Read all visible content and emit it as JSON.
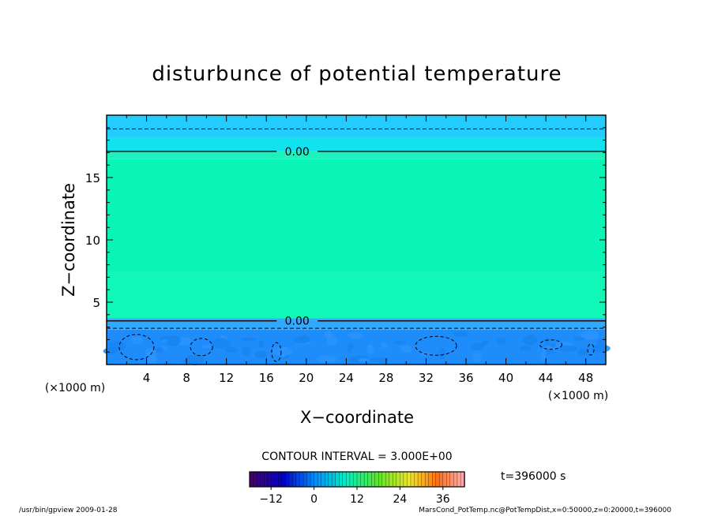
{
  "chart_data": {
    "type": "heatmap",
    "title": "disturbunce of potential temperature",
    "xlabel": "X−coordinate",
    "ylabel": "Z−coordinate",
    "x_unit": "(×1000 m)",
    "z_unit": "(×1000 m)",
    "xlim": [
      0,
      50
    ],
    "ylim": [
      0,
      20
    ],
    "x_ticks": [
      "4",
      "8",
      "12",
      "16",
      "20",
      "24",
      "28",
      "32",
      "36",
      "40",
      "44",
      "48"
    ],
    "y_ticks": [
      "5",
      "10",
      "15"
    ],
    "bands": [
      {
        "z_from": 0.0,
        "z_to": 2.8,
        "value": -4.5,
        "color": "#1f8cfc"
      },
      {
        "z_from": 2.8,
        "z_to": 3.7,
        "value": -1.5,
        "color": "#33a8ff"
      },
      {
        "z_from": 3.7,
        "z_to": 7.5,
        "value": 1.5,
        "color": "#10f7b8"
      },
      {
        "z_from": 7.5,
        "z_to": 16.5,
        "value": 1.5,
        "color": "#08f5b5"
      },
      {
        "z_from": 16.5,
        "z_to": 17.1,
        "value": 1.5,
        "color": "#1ef0c0"
      },
      {
        "z_from": 17.1,
        "z_to": 18.2,
        "value": -1.5,
        "color": "#12e2ee"
      },
      {
        "z_from": 18.2,
        "z_to": 20.0,
        "value": -1.5,
        "color": "#22ccff"
      }
    ],
    "contours": [
      {
        "level": "0.00",
        "z": 17.1,
        "style": "solid",
        "label_x": 17.5
      },
      {
        "level": "0.00",
        "z": 3.5,
        "style": "solid",
        "label_x": 17.5
      },
      {
        "level": "-3",
        "z": 18.9,
        "style": "dashed"
      },
      {
        "level": "-3",
        "z": 2.9,
        "style": "dashed"
      }
    ],
    "contour_interval_label": "CONTOUR INTERVAL = 3.000E+00",
    "colorbar": {
      "min": -18,
      "max": 42,
      "tick_labels": [
        "−12",
        "0",
        "12",
        "24",
        "36"
      ],
      "tick_values": [
        -12,
        0,
        12,
        24,
        36
      ]
    }
  },
  "time_label": "t=396000 s",
  "footer": {
    "left": "/usr/bin/gpview  2009-01-28",
    "right": "MarsCond_PotTemp.nc@PotTempDist,x=0:50000,z=0:20000,t=396000"
  }
}
